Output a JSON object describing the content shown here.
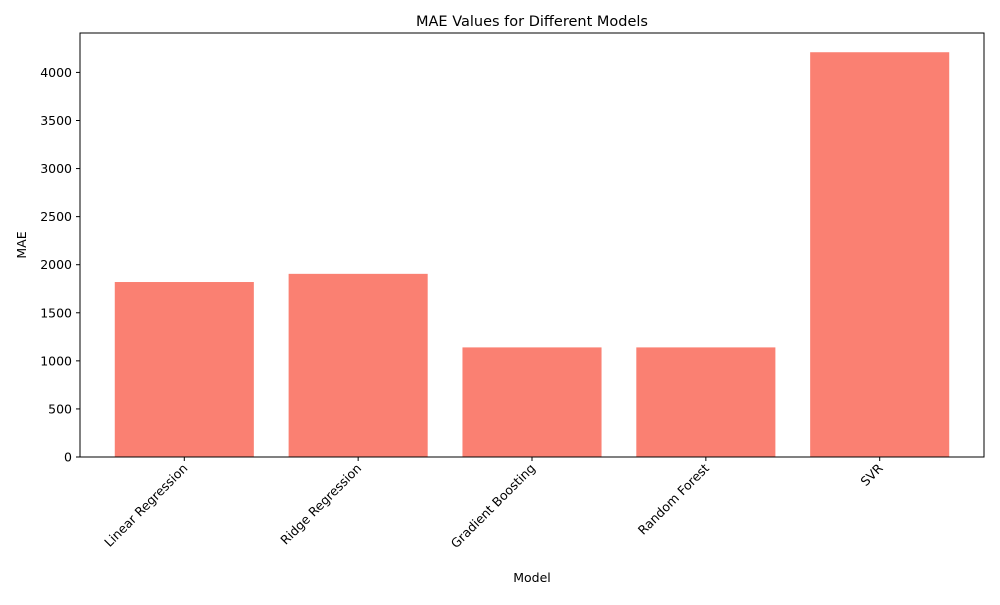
{
  "chart_data": {
    "type": "bar",
    "title": "MAE Values for Different Models",
    "xlabel": "Model",
    "ylabel": "MAE",
    "categories": [
      "Linear Regression",
      "Ridge Regression",
      "Gradient Boosting",
      "Random Forest",
      "SVR"
    ],
    "values": [
      1820,
      1905,
      1140,
      1140,
      4210
    ],
    "ylim": [
      0,
      4410
    ],
    "yticks": [
      0,
      500,
      1000,
      1500,
      2000,
      2500,
      3000,
      3500,
      4000
    ],
    "bar_color": "#FA8072",
    "grid": false,
    "legend": "none",
    "x_tick_rotation_deg": 45
  }
}
